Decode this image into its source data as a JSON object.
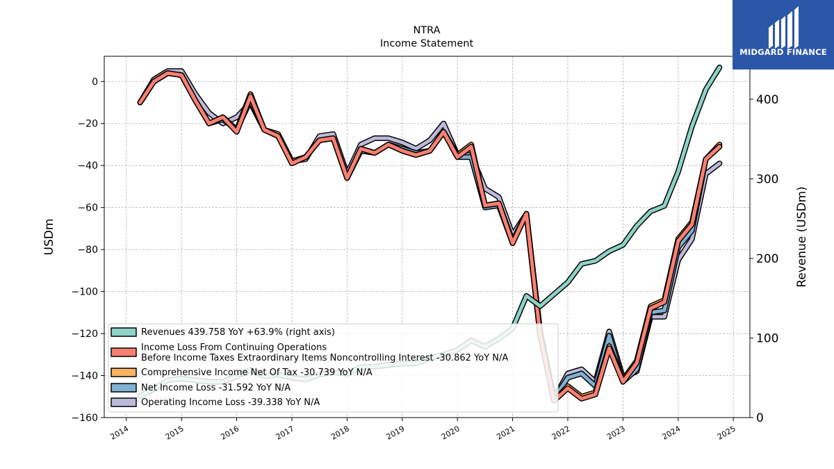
{
  "chart_data": {
    "type": "line",
    "title": "NTRA",
    "subtitle": "Income Statement",
    "ylabel": "USDm",
    "ylabel_right": "Revenue (USDm)",
    "ylim": [
      -160,
      12
    ],
    "ylim_right": [
      0,
      454
    ],
    "xlim": [
      2013.6,
      2025.3
    ],
    "yticks": [
      0,
      -20,
      -40,
      -60,
      -80,
      -100,
      -120,
      -140,
      -160
    ],
    "yticks_right": [
      0,
      100,
      200,
      300,
      400
    ],
    "xticks": [
      2014,
      2015,
      2016,
      2017,
      2018,
      2019,
      2020,
      2021,
      2022,
      2023,
      2024,
      2025
    ],
    "grid": true,
    "legend_position": "lower-left",
    "x": [
      2014.25,
      2014.5,
      2014.75,
      2015.0,
      2015.25,
      2015.5,
      2015.75,
      2016.0,
      2016.25,
      2016.5,
      2016.75,
      2017.0,
      2017.25,
      2017.5,
      2017.75,
      2018.0,
      2018.25,
      2018.5,
      2018.75,
      2019.0,
      2019.25,
      2019.5,
      2019.75,
      2020.0,
      2020.25,
      2020.5,
      2020.75,
      2021.0,
      2021.25,
      2021.5,
      2021.75,
      2022.0,
      2022.25,
      2022.5,
      2022.75,
      2023.0,
      2023.25,
      2023.5,
      2023.75,
      2024.0,
      2024.25,
      2024.5,
      2024.75
    ],
    "series": [
      {
        "name": "Revenues  439.758 YoY +63.9% (right axis)",
        "axis": "right",
        "color": "#8dd3c7",
        "values": [
          27,
          36,
          47,
          49,
          47,
          45,
          45,
          52,
          60,
          52,
          54,
          50,
          48,
          54,
          57,
          55,
          63,
          64,
          66,
          68,
          68,
          75,
          79,
          85,
          97,
          89,
          99,
          112,
          153,
          140,
          155,
          170,
          193,
          197,
          209,
          217,
          241,
          259,
          266,
          309,
          366,
          412,
          440
        ]
      },
      {
        "name": "Income Loss From Continuing Operations\nBefore Income Taxes Extraordinary Items Noncontrolling Interest  -30.862 YoY N/A",
        "axis": "left",
        "color": "#fb8072",
        "values": [
          -10,
          0,
          4,
          3,
          -9,
          -20,
          -17,
          -24,
          -7,
          -23,
          -26,
          -39,
          -36,
          -28,
          -27,
          -46,
          -32,
          -34,
          -30,
          -33,
          -35,
          -33,
          -24,
          -36,
          -31,
          -59,
          -58,
          -77,
          -63,
          -121,
          -152,
          -146,
          -151,
          -149,
          -127,
          -143,
          -134,
          -108,
          -105,
          -76,
          -68,
          -37,
          -31
        ]
      },
      {
        "name": "Comprehensive Income Net Of Tax  -30.739 YoY N/A",
        "axis": "left",
        "color": "#fdb462",
        "values": [
          -10,
          0,
          4,
          3,
          -9,
          -20,
          -17,
          -23,
          -6,
          -23,
          -25,
          -38,
          -36,
          -28,
          -27,
          -46,
          -32,
          -34,
          -30,
          -33,
          -35,
          -33,
          -24,
          -35,
          -30,
          -59,
          -58,
          -76,
          -63,
          -121,
          -152,
          -145,
          -150,
          -148,
          -126,
          -142,
          -133,
          -107,
          -104,
          -75,
          -67,
          -37,
          -30
        ]
      },
      {
        "name": "Net Income Loss  -31.592 YoY N/A",
        "axis": "left",
        "color": "#80b1d3",
        "values": [
          -10,
          0,
          4,
          3,
          -9,
          -20,
          -18,
          -23,
          -9,
          -23,
          -26,
          -38,
          -36,
          -28,
          -27,
          -46,
          -33,
          -34,
          -30,
          -32,
          -34,
          -33,
          -24,
          -36,
          -36,
          -60,
          -59,
          -77,
          -63,
          -121,
          -151,
          -141,
          -139,
          -145,
          -121,
          -143,
          -137,
          -110,
          -109,
          -79,
          -71,
          -37,
          -31
        ]
      },
      {
        "name": "Operating Income Loss  -39.338 YoY N/A",
        "axis": "left",
        "color": "#bebada",
        "values": [
          -10,
          1,
          5,
          5,
          -6,
          -15,
          -20,
          -17,
          -10,
          -23,
          -26,
          -38,
          -37,
          -26,
          -25,
          -44,
          -30,
          -27,
          -27,
          -29,
          -32,
          -28,
          -20,
          -35,
          -35,
          -51,
          -55,
          -73,
          -63,
          -119,
          -151,
          -139,
          -137,
          -143,
          -119,
          -141,
          -138,
          -112,
          -112,
          -85,
          -75,
          -44,
          -39
        ]
      }
    ]
  },
  "logo": {
    "text": "MIDGARD FINANCE"
  }
}
